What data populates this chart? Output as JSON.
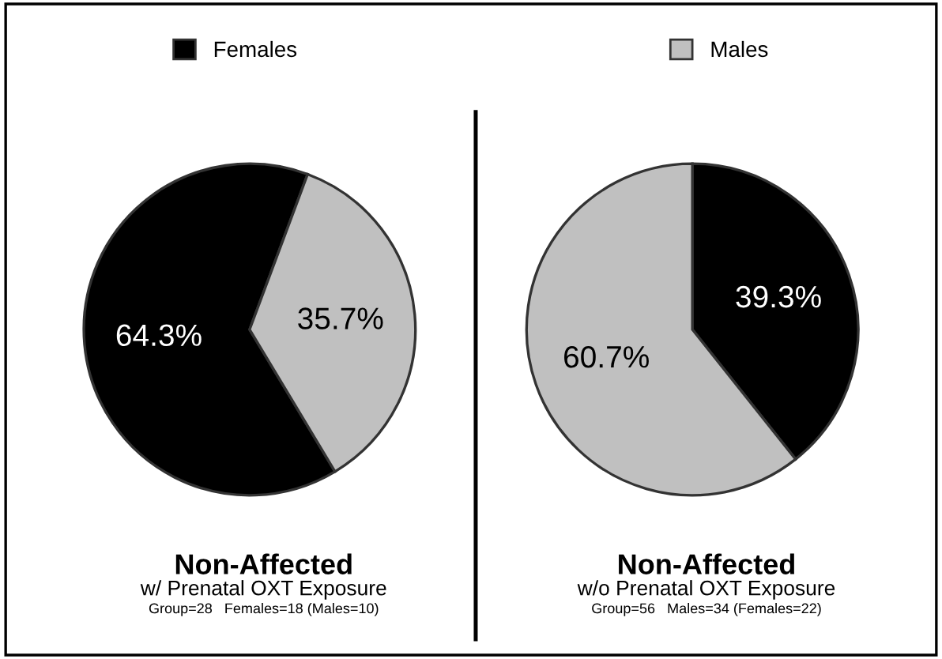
{
  "chart_data": [
    {
      "type": "pie",
      "title": "Non-Affected",
      "subtitle": "w/ Prenatal OXT Exposure",
      "annotations": [
        "Group=28   Females=18 (Males=10)"
      ],
      "categories": [
        "Females",
        "Males"
      ],
      "values": [
        64.3,
        35.7
      ],
      "colors": [
        "#000000",
        "#c0c0c0"
      ],
      "value_labels": [
        "64.3%",
        "35.7%"
      ],
      "legend": "top"
    },
    {
      "type": "pie",
      "title": "Non-Affected",
      "subtitle": "w/o Prenatal OXT Exposure",
      "annotations": [
        "Group=56   Males=34 (Females=22)"
      ],
      "categories": [
        null,
        null
      ],
      "values": [
        39.3,
        60.7
      ],
      "colors": [
        "#000000",
        "#c0c0c0"
      ],
      "value_labels": [
        "39.3%",
        "60.7%"
      ]
    }
  ]
}
